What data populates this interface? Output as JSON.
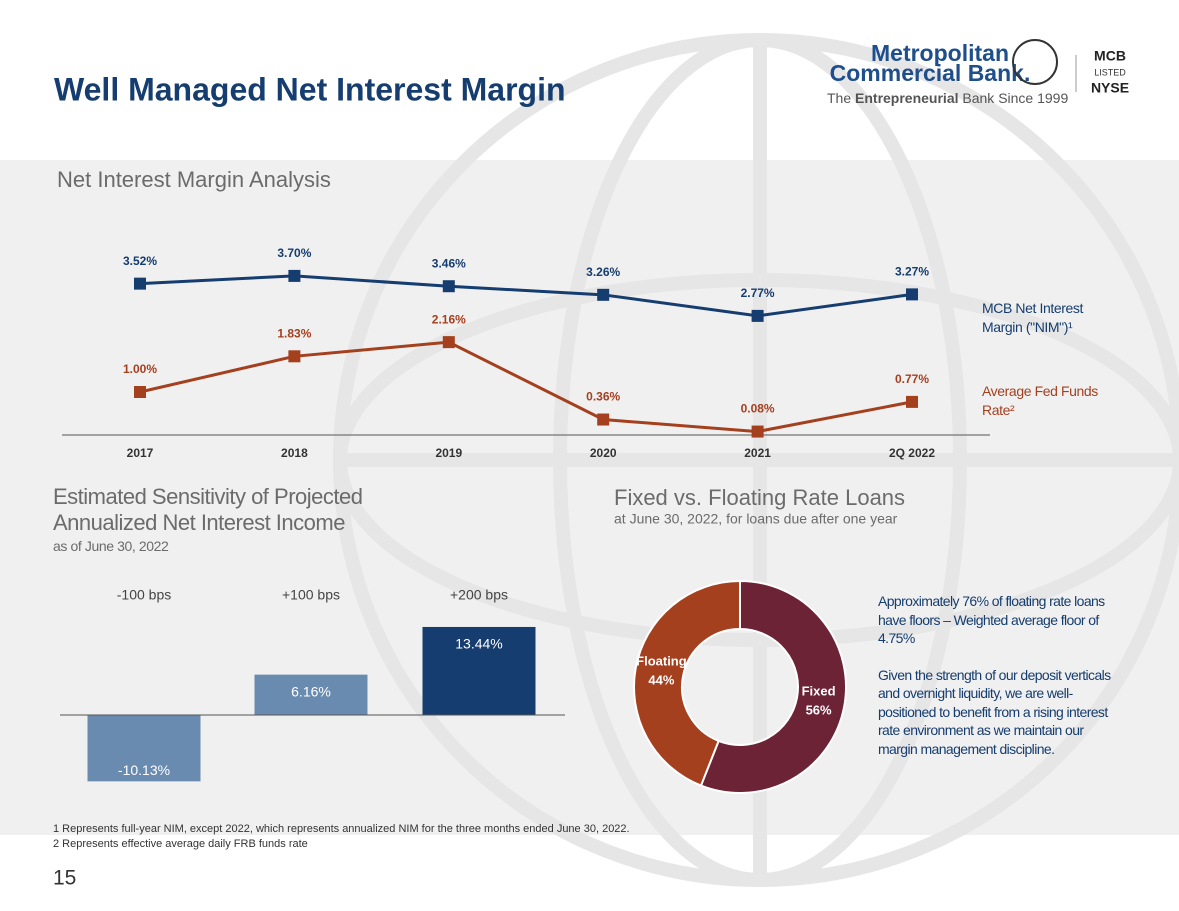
{
  "header": {
    "title": "Well Managed Net Interest Margin",
    "logo": {
      "name_line1": "Metropolitan",
      "name_line2": "Commercial Bank.",
      "tagline_pre": "The",
      "tagline_bold": "Entrepreneurial",
      "tagline_post": "Bank Since 1999",
      "ticker": "MCB",
      "listed": "LISTED",
      "exchange": "NYSE"
    }
  },
  "chart_data": [
    {
      "type": "line",
      "title": "Net Interest Margin Analysis",
      "categories": [
        "2017",
        "2018",
        "2019",
        "2020",
        "2021",
        "2Q 2022"
      ],
      "series": [
        {
          "name": "MCB Net Interest Margin (\"NIM\")¹",
          "color": "#163d6f",
          "values": [
            3.52,
            3.7,
            3.46,
            3.26,
            2.77,
            3.27
          ],
          "value_labels": [
            "3.52%",
            "3.70%",
            "3.46%",
            "3.26%",
            "2.77%",
            "3.27%"
          ]
        },
        {
          "name": "Average Fed Funds Rate²",
          "color": "#a5401f",
          "values": [
            1,
            1.83,
            2.16,
            0.36,
            0.08,
            0.77
          ],
          "value_labels": [
            "1.00%",
            "1.83%",
            "2.16%",
            "0.36%",
            "0.08%",
            "0.77%"
          ]
        }
      ]
    },
    {
      "type": "bar",
      "title": "Estimated Sensitivity of Projected Annualized Net Interest Income",
      "subtitle": "as of  June 30, 2022",
      "categories": [
        "-100 bps",
        "+100 bps",
        "+200 bps"
      ],
      "values": [
        -10.13,
        6.16,
        13.44
      ],
      "value_labels": [
        "-10.13%",
        "6.16%",
        "13.44%"
      ],
      "colors": [
        "#6a8bb0",
        "#6a8bb0",
        "#163d6f"
      ]
    },
    {
      "type": "pie",
      "title": "Fixed vs. Floating Rate Loans",
      "subtitle": "at June 30, 2022,  for loans due after one year",
      "categories": [
        "Fixed",
        "Floating"
      ],
      "values": [
        56,
        44
      ],
      "value_labels": [
        "56%",
        "44%"
      ],
      "colors": [
        "#6b2335",
        "#a5401f"
      ]
    }
  ],
  "notes": [
    "Approximately  76% of floating rate loans have floors – Weighted average floor of 4.75%",
    "Given the strength of our deposit verticals  and overnight  liquidity, we are well- positioned to benefit from a rising  interest  rate environment as we maintain our  margin management discipline."
  ],
  "footnotes": [
    "1 Represents full-year NIM, except 2022, which represents annualized NIM for the three months ended June 30, 2022.",
    "2 Represents effective average daily FRB funds rate"
  ],
  "page_number": "15"
}
